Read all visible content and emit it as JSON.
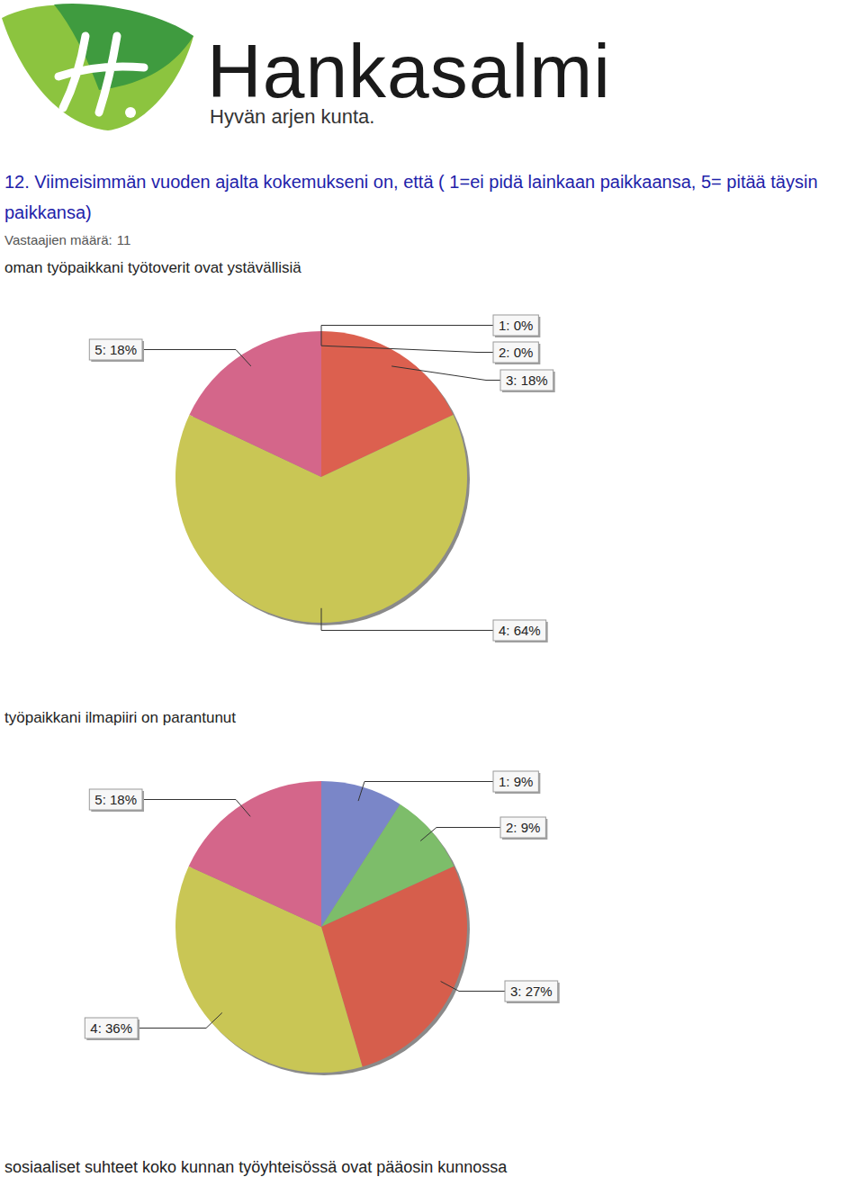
{
  "header": {
    "logo_text": "Hankasalmi",
    "tagline": "Hyvän arjen kunta."
  },
  "question": {
    "title": "12. Viimeisimmän vuoden ajalta kokemukseni on, että ( 1=ei pidä lainkaan paikkaansa, 5= pitää täysin paikkansa)",
    "respondents_label": "Vastaajien määrä:",
    "respondents": 11
  },
  "chart_data": [
    {
      "type": "pie",
      "title": "oman työpaikkani työtoverit ovat ystävällisiä",
      "values": [
        0,
        0,
        18,
        64,
        18
      ],
      "value_labels": [
        "1: 0%",
        "2: 0%",
        "3: 18%",
        "4: 64%",
        "5: 18%"
      ],
      "colors": [
        "#7a86c8",
        "#7dbd6a",
        "#dc604f",
        "#c9c655",
        "#d4668a"
      ],
      "data_labels": true
    },
    {
      "type": "pie",
      "title": "työpaikkani ilmapiiri on parantunut",
      "values": [
        9,
        9,
        27,
        36,
        18
      ],
      "value_labels": [
        "1: 9%",
        "2: 9%",
        "3: 27%",
        "4: 36%",
        "5: 18%"
      ],
      "colors": [
        "#7a86c8",
        "#7dbd6a",
        "#d65e4c",
        "#c9c655",
        "#d4668a"
      ],
      "data_labels": true
    }
  ],
  "footer_text": "sosiaaliset suhteet koko kunnan työyhteisössä ovat pääosin kunnossa"
}
